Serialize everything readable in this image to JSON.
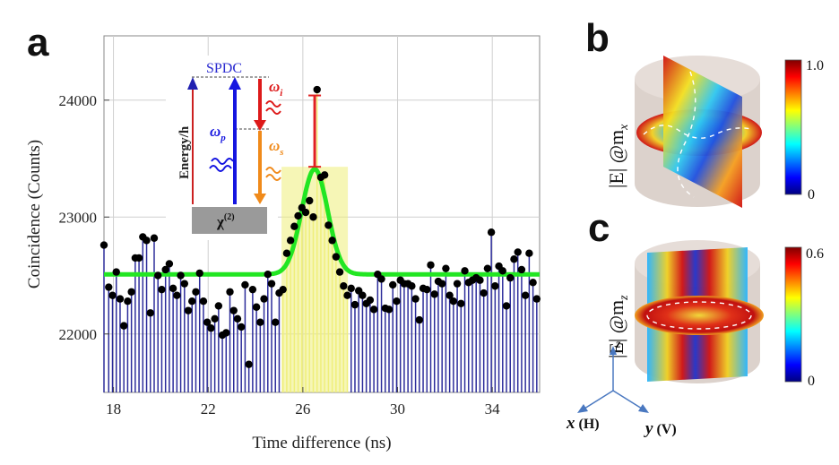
{
  "panels": {
    "a": "a",
    "b": "b",
    "c": "c"
  },
  "chart_data": {
    "type": "bar",
    "title": "",
    "xlabel": "Time difference (ns)",
    "ylabel": "Coincidence (Counts)",
    "xlim": [
      17.6,
      36.0
    ],
    "ylim": [
      21500,
      24550
    ],
    "xticks": [
      18,
      22,
      26,
      30,
      34
    ],
    "yticks": [
      22000,
      23000,
      24000
    ],
    "bar_width": 0.16,
    "highlight_range": [
      25.1,
      27.9
    ],
    "colors": {
      "bars": "#2b2b9a",
      "highlight_bars": "#efef7a",
      "fit": "#22e622",
      "points": "#000000",
      "errorbar": "#e02020"
    },
    "series": [
      {
        "name": "Coincidence counts",
        "x": [
          17.6,
          17.8,
          17.96,
          18.12,
          18.28,
          18.44,
          18.6,
          18.76,
          18.92,
          19.08,
          19.24,
          19.4,
          19.56,
          19.72,
          19.88,
          20.04,
          20.2,
          20.36,
          20.52,
          20.68,
          20.84,
          21.0,
          21.16,
          21.32,
          21.48,
          21.64,
          21.8,
          21.96,
          22.12,
          22.28,
          22.44,
          22.6,
          22.76,
          22.92,
          23.08,
          23.24,
          23.4,
          23.56,
          23.72,
          23.88,
          24.04,
          24.2,
          24.36,
          24.52,
          24.68,
          24.84,
          25.0,
          25.16,
          25.32,
          25.48,
          25.64,
          25.8,
          25.96,
          26.12,
          26.28,
          26.44,
          26.6,
          26.76,
          26.92,
          27.08,
          27.24,
          27.4,
          27.56,
          27.72,
          27.88,
          28.04,
          28.2,
          28.36,
          28.52,
          28.68,
          28.84,
          29.0,
          29.16,
          29.32,
          29.48,
          29.64,
          29.8,
          29.96,
          30.12,
          30.28,
          30.44,
          30.6,
          30.76,
          30.92,
          31.08,
          31.24,
          31.4,
          31.56,
          31.72,
          31.88,
          32.04,
          32.2,
          32.36,
          32.52,
          32.68,
          32.84,
          33.0,
          33.16,
          33.32,
          33.48,
          33.64,
          33.8,
          33.96,
          34.12,
          34.28,
          34.44,
          34.6,
          34.76,
          34.92,
          35.08,
          35.24,
          35.4,
          35.56,
          35.72,
          35.88
        ],
        "values": [
          22760,
          22400,
          22330,
          22530,
          22300,
          22070,
          22280,
          22360,
          22650,
          22650,
          22830,
          22800,
          22180,
          22820,
          22500,
          22380,
          22550,
          22600,
          22390,
          22330,
          22500,
          22430,
          22200,
          22280,
          22360,
          22520,
          22280,
          22100,
          22050,
          22130,
          22240,
          21990,
          22010,
          22360,
          22200,
          22130,
          22060,
          22420,
          21740,
          22380,
          22230,
          22100,
          22300,
          22510,
          22430,
          22100,
          22350,
          22380,
          22690,
          22800,
          22920,
          23010,
          23080,
          23040,
          23140,
          23000,
          24090,
          23340,
          23360,
          22930,
          22800,
          22660,
          22530,
          22410,
          22330,
          22390,
          22250,
          22370,
          22330,
          22260,
          22290,
          22210,
          22510,
          22470,
          22220,
          22210,
          22420,
          22280,
          22460,
          22430,
          22430,
          22410,
          22300,
          22120,
          22390,
          22380,
          22590,
          22340,
          22450,
          22430,
          22560,
          22330,
          22280,
          22430,
          22260,
          22540,
          22440,
          22460,
          22480,
          22460,
          22350,
          22560,
          22870,
          22410,
          22580,
          22540,
          22240,
          22480,
          22640,
          22700,
          22550,
          22330,
          22690,
          22440,
          22300
        ]
      },
      {
        "name": "Gaussian fit",
        "baseline": 22510,
        "amplitude": 900,
        "center": 26.5,
        "sigma": 0.55
      }
    ],
    "errorbar": {
      "x": 26.5,
      "low": 23430,
      "high": 24040
    }
  },
  "inset": {
    "spdc_label": "SPDC",
    "energy_label": "Energy/h",
    "chi_label": "χ",
    "chi_power": "(2)",
    "omega_p": "ω",
    "omega_p_sub": "p",
    "omega_i": "ω",
    "omega_i_sub": "i",
    "omega_s": "ω",
    "omega_s_sub": "s"
  },
  "panel_b": {
    "label_main": "|E| @m",
    "label_sub": "x",
    "cbar_max": "1.0",
    "cbar_min": "0"
  },
  "panel_c": {
    "label_main": "|E| @m",
    "label_sub": "z",
    "cbar_max": "0.6",
    "cbar_min": "0"
  },
  "axes3d": {
    "z_label": "z",
    "x_label": "x",
    "x_paren": "(H)",
    "y_label": "y",
    "y_paren": "(V)"
  }
}
